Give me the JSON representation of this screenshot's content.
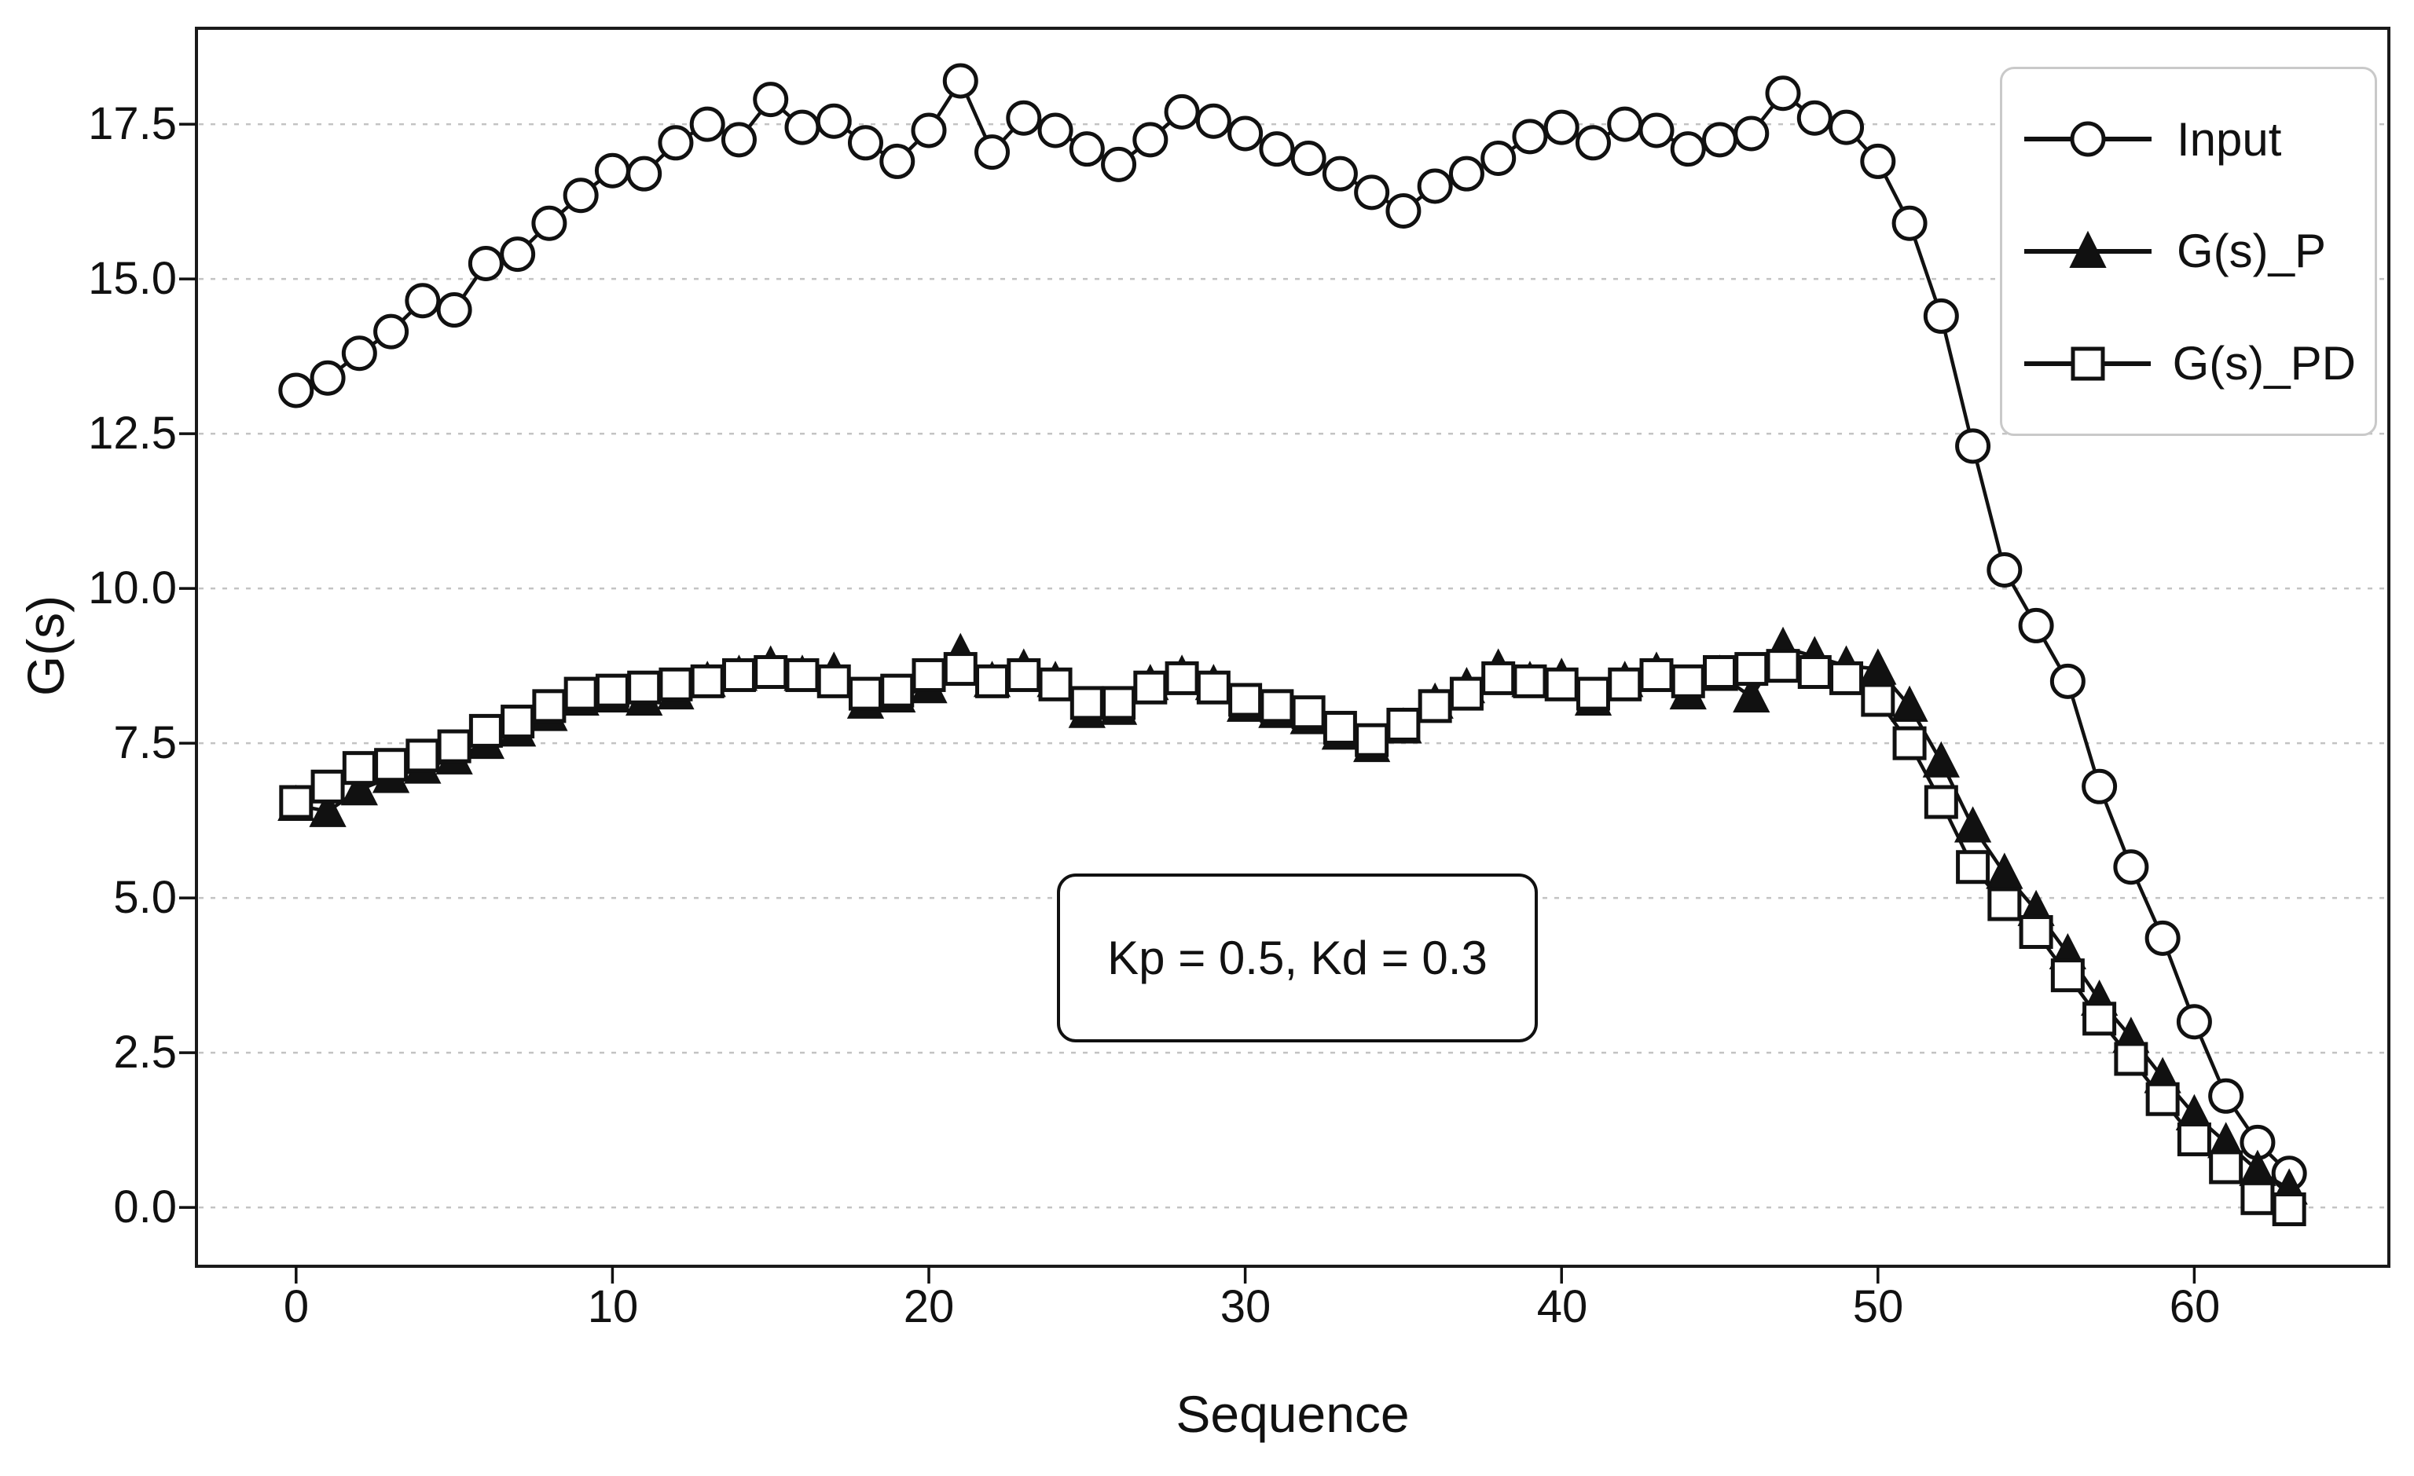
{
  "chart_data": {
    "type": "line",
    "title": "",
    "xlabel": "Sequence",
    "ylabel": "G(s)",
    "annotation": {
      "text": "Kp = 0.5, Kd = 0.3",
      "x": 31.5,
      "y": 4.1
    },
    "legend_position": "upper right",
    "grid": "horizontal dashed",
    "xlim": [
      -3.15,
      66.15
    ],
    "ylim": [
      -0.95,
      19.05
    ],
    "xticks": [
      0,
      10,
      20,
      30,
      40,
      50,
      60
    ],
    "xtick_labels": [
      "0",
      "10",
      "20",
      "30",
      "40",
      "50",
      "60"
    ],
    "yticks": [
      17.5,
      15.0,
      12.5,
      10.0,
      7.5,
      5.0,
      2.5,
      0.0
    ],
    "ytick_labels": [
      "17.5",
      "15.0",
      "12.5",
      "10.0",
      "7.5",
      "5.0",
      "2.5",
      "0.0"
    ],
    "x": [
      0,
      1,
      2,
      3,
      4,
      5,
      6,
      7,
      8,
      9,
      10,
      11,
      12,
      13,
      14,
      15,
      16,
      17,
      18,
      19,
      20,
      21,
      22,
      23,
      24,
      25,
      26,
      27,
      28,
      29,
      30,
      31,
      32,
      33,
      34,
      35,
      36,
      37,
      38,
      39,
      40,
      41,
      42,
      43,
      44,
      45,
      46,
      47,
      48,
      49,
      50,
      51,
      52,
      53,
      54,
      55,
      56,
      57,
      58,
      59,
      60,
      61,
      62,
      63
    ],
    "series": [
      {
        "name": "Input",
        "marker": "circle",
        "marker_fill": "#ffffff",
        "line_color": "#111111",
        "values": [
          13.2,
          13.4,
          13.8,
          14.15,
          14.65,
          14.5,
          15.25,
          15.4,
          15.9,
          16.35,
          16.75,
          16.7,
          17.2,
          17.5,
          17.25,
          17.9,
          17.45,
          17.55,
          17.2,
          16.9,
          17.4,
          18.2,
          17.05,
          17.6,
          17.4,
          17.1,
          16.85,
          17.25,
          17.7,
          17.55,
          17.35,
          17.1,
          16.95,
          16.7,
          16.4,
          16.1,
          16.5,
          16.7,
          16.95,
          17.3,
          17.45,
          17.2,
          17.5,
          17.4,
          17.1,
          17.25,
          17.35,
          18.0,
          17.6,
          17.45,
          16.9,
          15.9,
          14.4,
          12.3,
          10.3,
          9.4,
          8.5,
          6.8,
          5.5,
          4.35,
          3.0,
          1.8,
          1.05,
          0.55
        ]
      },
      {
        "name": "G(s)_P",
        "marker": "triangle",
        "marker_fill": "#111111",
        "line_color": "#111111",
        "values": [
          6.5,
          6.4,
          6.75,
          6.95,
          7.1,
          7.25,
          7.5,
          7.7,
          7.95,
          8.2,
          8.25,
          8.2,
          8.3,
          8.5,
          8.6,
          8.75,
          8.6,
          8.65,
          8.15,
          8.25,
          8.4,
          8.95,
          8.5,
          8.7,
          8.5,
          8.0,
          8.05,
          8.45,
          8.6,
          8.45,
          8.1,
          8.0,
          7.9,
          7.65,
          7.45,
          7.75,
          8.15,
          8.4,
          8.7,
          8.5,
          8.55,
          8.2,
          8.5,
          8.65,
          8.3,
          8.6,
          8.25,
          9.05,
          8.9,
          8.75,
          8.7,
          8.1,
          7.2,
          6.15,
          5.4,
          4.8,
          4.1,
          3.35,
          2.75,
          2.1,
          1.5,
          1.05,
          0.6,
          0.3
        ]
      },
      {
        "name": "G(s)_PD",
        "marker": "square",
        "marker_fill": "#ffffff",
        "line_color": "#111111",
        "values": [
          6.55,
          6.8,
          7.1,
          7.15,
          7.3,
          7.45,
          7.7,
          7.85,
          8.1,
          8.3,
          8.35,
          8.4,
          8.45,
          8.5,
          8.6,
          8.65,
          8.6,
          8.5,
          8.3,
          8.35,
          8.6,
          8.7,
          8.5,
          8.6,
          8.45,
          8.15,
          8.15,
          8.4,
          8.55,
          8.4,
          8.2,
          8.1,
          8.0,
          7.75,
          7.55,
          7.8,
          8.1,
          8.3,
          8.55,
          8.5,
          8.45,
          8.3,
          8.45,
          8.6,
          8.5,
          8.65,
          8.7,
          8.75,
          8.65,
          8.55,
          8.2,
          7.5,
          6.55,
          5.5,
          4.9,
          4.45,
          3.75,
          3.05,
          2.4,
          1.75,
          1.1,
          0.65,
          0.15,
          -0.03
        ]
      }
    ],
    "colors": {
      "line": "#111111",
      "grid": "#c3c3c3",
      "spine": "#1a1a1a",
      "legend_border": "#c9c9c9",
      "background": "#ffffff"
    }
  }
}
